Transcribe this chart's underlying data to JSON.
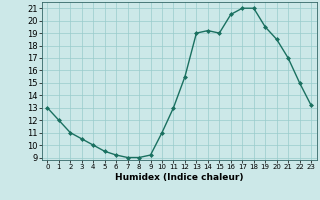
{
  "x": [
    0,
    1,
    2,
    3,
    4,
    5,
    6,
    7,
    8,
    9,
    10,
    11,
    12,
    13,
    14,
    15,
    16,
    17,
    18,
    19,
    20,
    21,
    22,
    23
  ],
  "y": [
    13,
    12,
    11,
    10.5,
    10,
    9.5,
    9.2,
    9.0,
    9.0,
    9.2,
    11,
    13,
    15.5,
    19,
    19.2,
    19,
    20.5,
    21,
    21,
    19.5,
    18.5,
    17,
    15,
    13.2
  ],
  "line_color": "#1a7060",
  "marker_color": "#1a7060",
  "bg_color": "#cce8e8",
  "grid_color": "#99cccc",
  "xlabel": "Humidex (Indice chaleur)",
  "xlim": [
    -0.5,
    23.5
  ],
  "ylim": [
    8.8,
    21.5
  ],
  "yticks": [
    9,
    10,
    11,
    12,
    13,
    14,
    15,
    16,
    17,
    18,
    19,
    20,
    21
  ],
  "xticks": [
    0,
    1,
    2,
    3,
    4,
    5,
    6,
    7,
    8,
    9,
    10,
    11,
    12,
    13,
    14,
    15,
    16,
    17,
    18,
    19,
    20,
    21,
    22,
    23
  ],
  "xlabel_fontsize": 6.5,
  "tick_fontsize": 6.0
}
